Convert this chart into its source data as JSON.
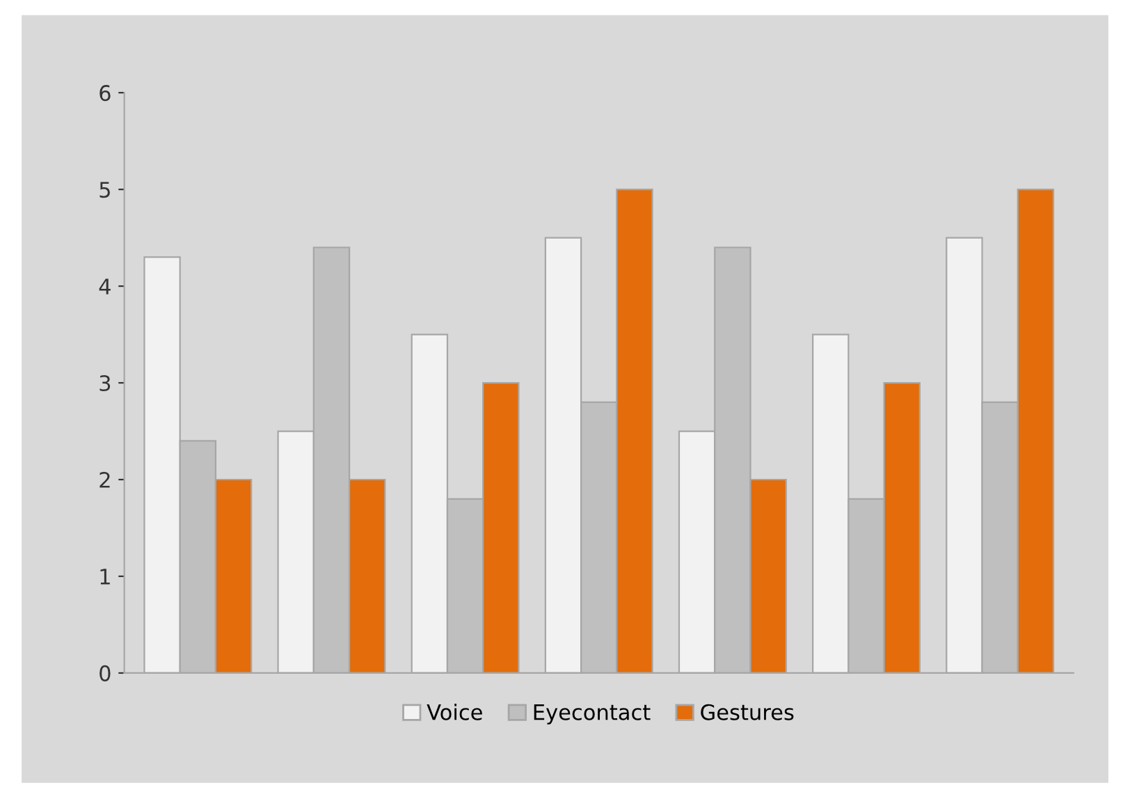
{
  "chart_data": {
    "type": "bar",
    "categories": [
      null,
      null,
      null,
      null,
      null,
      null,
      null
    ],
    "series": [
      {
        "name": "Voice",
        "color": "#f2f2f2",
        "values": [
          4.3,
          2.5,
          3.5,
          4.5,
          2.5,
          3.5,
          4.5
        ]
      },
      {
        "name": "Eyecontact",
        "color": "#bfbfbf",
        "values": [
          2.4,
          4.4,
          1.8,
          2.8,
          4.4,
          1.8,
          2.8
        ]
      },
      {
        "name": "Gestures",
        "color": "#e46c0a",
        "values": [
          2.0,
          2.0,
          3.0,
          5.0,
          2.0,
          3.0,
          5.0
        ]
      }
    ],
    "ylim": [
      0,
      6
    ],
    "yticks": [
      0,
      1,
      2,
      3,
      4,
      5,
      6
    ],
    "grid": false,
    "legend": "bottom"
  }
}
